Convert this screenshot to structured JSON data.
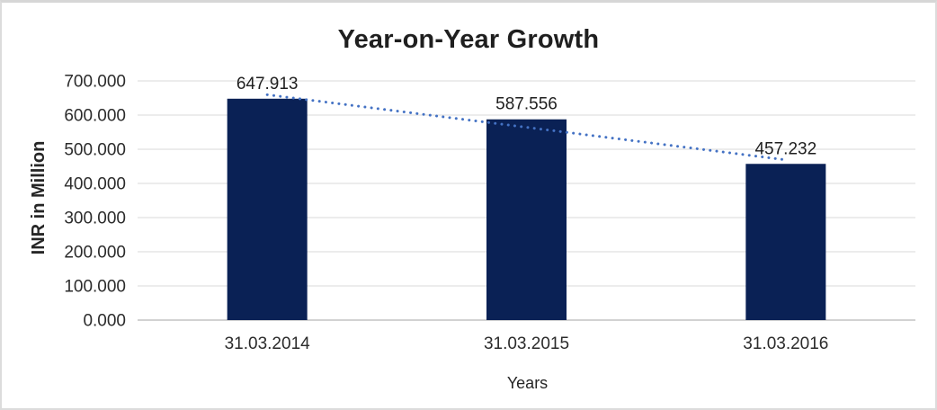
{
  "chart_data": {
    "type": "bar",
    "title": "Year-on-Year Growth",
    "xlabel": "Years",
    "ylabel": "INR in Million",
    "categories": [
      "31.03.2014",
      "31.03.2015",
      "31.03.2016"
    ],
    "values": [
      647.913,
      587.556,
      457.232
    ],
    "data_labels": [
      "647.913",
      "587.556",
      "457.232"
    ],
    "ylim": [
      0,
      700
    ],
    "ytick_step": 100,
    "ytick_labels": [
      "0.000",
      "100.000",
      "200.000",
      "300.000",
      "400.000",
      "500.000",
      "600.000",
      "700.000"
    ],
    "grid": true,
    "legend": "none",
    "bar_color": "#0a2155",
    "gridline_color": "#d9d9d9",
    "axis_line_color": "#d2d2d2",
    "text_color": "#2b2b2b",
    "trendline": {
      "type": "linear",
      "style": "dotted",
      "color": "#4472c4",
      "span": "first-bar-center to last-bar-center"
    }
  }
}
